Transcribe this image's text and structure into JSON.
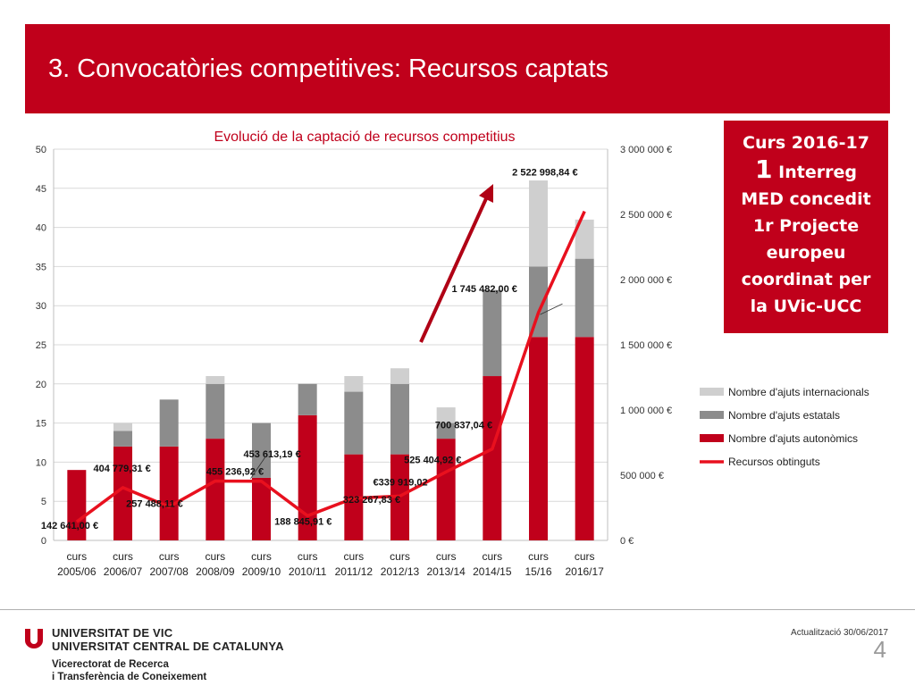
{
  "header": {
    "title": "3. Convocatòries competitives: Recursos captats"
  },
  "callout": {
    "line1": "Curs 2016-17",
    "number": "1",
    "line2": "Interreg",
    "line3": "MED concedit",
    "line4": "1r Projecte",
    "line5": "europeu",
    "line6": "coordinat per",
    "line7": "la UVic-UCC"
  },
  "chart_data": {
    "type": "bar",
    "title": "Evolució de la captació de recursos competitius",
    "stacked": true,
    "categories": [
      [
        "curs",
        "2005/06"
      ],
      [
        "curs",
        "2006/07"
      ],
      [
        "curs",
        "2007/08"
      ],
      [
        "curs",
        "2008/09"
      ],
      [
        "curs",
        "2009/10"
      ],
      [
        "curs",
        "2010/11"
      ],
      [
        "curs",
        "2011/12"
      ],
      [
        "curs",
        "2012/13"
      ],
      [
        "curs",
        "2013/14"
      ],
      [
        "curs",
        "2014/15"
      ],
      [
        "curs",
        "15/16"
      ],
      [
        "curs",
        "2016/17"
      ]
    ],
    "y_left": {
      "min": 0,
      "max": 50,
      "ticks": [
        "0",
        "5",
        "10",
        "15",
        "20",
        "25",
        "30",
        "35",
        "40",
        "45",
        "50"
      ]
    },
    "y_right": {
      "min": 0,
      "max": 3000000,
      "ticks": [
        "0 €",
        "500 000 €",
        "1 000 000 €",
        "1 500 000 €",
        "2 000 000 €",
        "2 500 000 €",
        "3 000 000 €"
      ]
    },
    "series": [
      {
        "name": "Nombre d'ajuts autonòmics",
        "axis": "left",
        "color": "#c0001b",
        "values": [
          9,
          12,
          12,
          13,
          8,
          16,
          11,
          11,
          13,
          21,
          26,
          26
        ]
      },
      {
        "name": "Nombre d'ajuts estatals",
        "axis": "left",
        "color": "#8c8c8c",
        "values": [
          0,
          2,
          6,
          7,
          7,
          4,
          8,
          9,
          2,
          11,
          9,
          10
        ]
      },
      {
        "name": "Nombre d'ajuts internacionals",
        "axis": "left",
        "color": "#cfcfcf",
        "values": [
          0,
          1,
          0,
          1,
          0,
          0,
          2,
          2,
          2,
          0,
          11,
          5
        ]
      },
      {
        "name": "Recursos obtinguts",
        "type": "line",
        "axis": "right",
        "color": "#e8101e",
        "values": [
          142641.0,
          404779.31,
          257488.11,
          455236.92,
          453613.19,
          188845.91,
          323267.83,
          339919.02,
          525404.92,
          700837.04,
          1745482.0,
          2522998.84
        ],
        "labels": [
          "142 641,00 €",
          "404 779,31 €",
          "257 488,11 €",
          "455 236,92 €",
          "453 613,19 €",
          "188 845,91 €",
          "323 267,83 €",
          "€339 919,02",
          "525 404,92 €",
          "700 837,04 €",
          "1 745 482,00 €",
          "2 522 998,84 €"
        ]
      }
    ],
    "legend": [
      "Nombre d'ajuts internacionals",
      "Nombre d'ajuts estatals",
      "Nombre d'ajuts autonòmics",
      "Recursos obtinguts"
    ],
    "legend_position": "right",
    "grid": true
  },
  "footer": {
    "update": "Actualització 30/06/2017",
    "page": "4",
    "uni1": "UNIVERSITAT DE VIC",
    "uni2": "UNIVERSITAT CENTRAL DE CATALUNYA",
    "vic1": "Vicerectorat de Recerca",
    "vic2": "i Transferència de Coneixement",
    "logo_color": "#c0001b"
  }
}
